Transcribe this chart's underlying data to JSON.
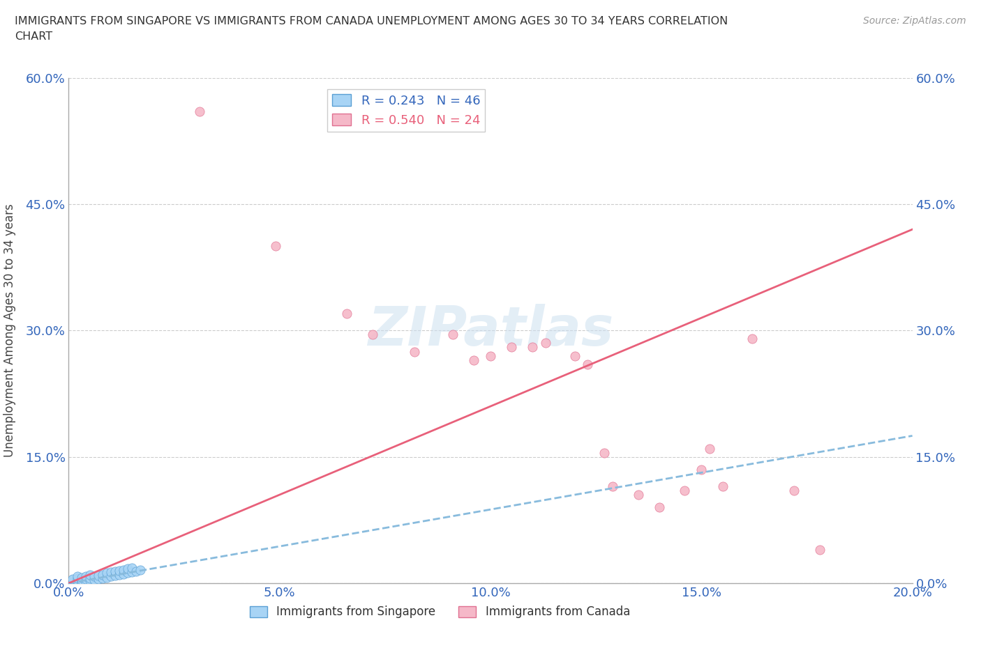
{
  "title": "IMMIGRANTS FROM SINGAPORE VS IMMIGRANTS FROM CANADA UNEMPLOYMENT AMONG AGES 30 TO 34 YEARS CORRELATION\nCHART",
  "source": "Source: ZipAtlas.com",
  "ylabel": "Unemployment Among Ages 30 to 34 years",
  "xlim": [
    0.0,
    0.2
  ],
  "ylim": [
    0.0,
    0.6
  ],
  "xticks": [
    0.0,
    0.05,
    0.1,
    0.15,
    0.2
  ],
  "yticks": [
    0.0,
    0.15,
    0.3,
    0.45,
    0.6
  ],
  "xticklabels": [
    "0.0%",
    "5.0%",
    "10.0%",
    "15.0%",
    "20.0%"
  ],
  "yticklabels": [
    "0.0%",
    "15.0%",
    "30.0%",
    "45.0%",
    "60.0%"
  ],
  "right_yticklabels": [
    "0.0%",
    "15.0%",
    "30.0%",
    "45.0%",
    "60.0%"
  ],
  "singapore_color": "#a8d4f5",
  "singapore_edge": "#5a9fd4",
  "canada_color": "#f5b8c8",
  "canada_edge": "#e07090",
  "singapore_R": 0.243,
  "singapore_N": 46,
  "canada_R": 0.54,
  "canada_N": 24,
  "watermark": "ZIPatlas",
  "singapore_line_color": "#88bbdd",
  "canada_line_color": "#e8607a",
  "singapore_points": [
    [
      0.0,
      0.0
    ],
    [
      0.0,
      0.001
    ],
    [
      0.001,
      0.0
    ],
    [
      0.001,
      0.001
    ],
    [
      0.001,
      0.002
    ],
    [
      0.001,
      0.003
    ],
    [
      0.001,
      0.004
    ],
    [
      0.001,
      0.005
    ],
    [
      0.002,
      0.0
    ],
    [
      0.002,
      0.001
    ],
    [
      0.002,
      0.002
    ],
    [
      0.002,
      0.003
    ],
    [
      0.002,
      0.006
    ],
    [
      0.002,
      0.008
    ],
    [
      0.003,
      0.001
    ],
    [
      0.003,
      0.002
    ],
    [
      0.003,
      0.004
    ],
    [
      0.003,
      0.007
    ],
    [
      0.004,
      0.002
    ],
    [
      0.004,
      0.005
    ],
    [
      0.004,
      0.008
    ],
    [
      0.005,
      0.003
    ],
    [
      0.005,
      0.006
    ],
    [
      0.005,
      0.01
    ],
    [
      0.006,
      0.004
    ],
    [
      0.006,
      0.008
    ],
    [
      0.007,
      0.005
    ],
    [
      0.007,
      0.009
    ],
    [
      0.008,
      0.006
    ],
    [
      0.008,
      0.01
    ],
    [
      0.009,
      0.007
    ],
    [
      0.009,
      0.012
    ],
    [
      0.01,
      0.008
    ],
    [
      0.01,
      0.013
    ],
    [
      0.011,
      0.009
    ],
    [
      0.011,
      0.014
    ],
    [
      0.012,
      0.01
    ],
    [
      0.012,
      0.015
    ],
    [
      0.013,
      0.011
    ],
    [
      0.013,
      0.016
    ],
    [
      0.014,
      0.012
    ],
    [
      0.014,
      0.017
    ],
    [
      0.015,
      0.013
    ],
    [
      0.015,
      0.018
    ],
    [
      0.016,
      0.014
    ],
    [
      0.017,
      0.016
    ]
  ],
  "canada_points": [
    [
      0.031,
      0.56
    ],
    [
      0.049,
      0.4
    ],
    [
      0.066,
      0.32
    ],
    [
      0.072,
      0.295
    ],
    [
      0.082,
      0.275
    ],
    [
      0.091,
      0.295
    ],
    [
      0.096,
      0.265
    ],
    [
      0.1,
      0.27
    ],
    [
      0.105,
      0.28
    ],
    [
      0.11,
      0.28
    ],
    [
      0.113,
      0.285
    ],
    [
      0.12,
      0.27
    ],
    [
      0.123,
      0.26
    ],
    [
      0.127,
      0.155
    ],
    [
      0.129,
      0.115
    ],
    [
      0.135,
      0.105
    ],
    [
      0.14,
      0.09
    ],
    [
      0.146,
      0.11
    ],
    [
      0.15,
      0.135
    ],
    [
      0.152,
      0.16
    ],
    [
      0.155,
      0.115
    ],
    [
      0.162,
      0.29
    ],
    [
      0.172,
      0.11
    ],
    [
      0.178,
      0.04
    ]
  ],
  "sg_trend": [
    0.0,
    0.2,
    0.0,
    0.175
  ],
  "ca_trend": [
    0.0,
    0.2,
    0.0,
    0.42
  ]
}
